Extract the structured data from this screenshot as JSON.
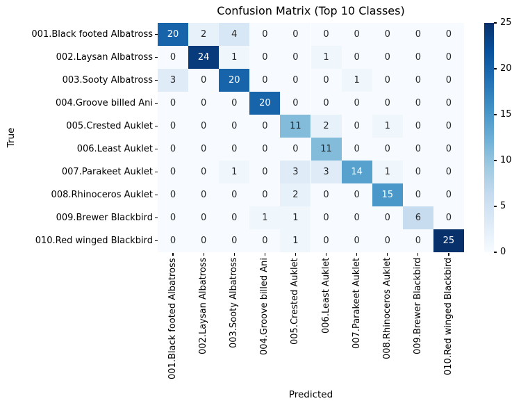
{
  "title": "Confusion Matrix (Top 10 Classes)",
  "chart_data": {
    "type": "heatmap",
    "title": "Confusion Matrix (Top 10 Classes)",
    "xlabel": "Predicted",
    "ylabel": "True",
    "categories": [
      "001.Black footed Albatross",
      "002.Laysan Albatross",
      "003.Sooty Albatross",
      "004.Groove billed Ani",
      "005.Crested Auklet",
      "006.Least Auklet",
      "007.Parakeet Auklet",
      "008.Rhinoceros Auklet",
      "009.Brewer Blackbird",
      "010.Red winged Blackbird"
    ],
    "matrix": [
      [
        20,
        2,
        4,
        0,
        0,
        0,
        0,
        0,
        0,
        0
      ],
      [
        0,
        24,
        1,
        0,
        0,
        1,
        0,
        0,
        0,
        0
      ],
      [
        3,
        0,
        20,
        0,
        0,
        0,
        1,
        0,
        0,
        0
      ],
      [
        0,
        0,
        0,
        20,
        0,
        0,
        0,
        0,
        0,
        0
      ],
      [
        0,
        0,
        0,
        0,
        11,
        2,
        0,
        1,
        0,
        0
      ],
      [
        0,
        0,
        0,
        0,
        0,
        11,
        0,
        0,
        0,
        0
      ],
      [
        0,
        0,
        1,
        0,
        3,
        3,
        14,
        1,
        0,
        0
      ],
      [
        0,
        0,
        0,
        0,
        2,
        0,
        0,
        15,
        0,
        0
      ],
      [
        0,
        0,
        0,
        1,
        1,
        0,
        0,
        0,
        6,
        0
      ],
      [
        0,
        0,
        0,
        0,
        1,
        0,
        0,
        0,
        0,
        25
      ]
    ],
    "vmin": 0,
    "vmax": 25,
    "colorbar_ticks": [
      0,
      5,
      10,
      15,
      20,
      25
    ],
    "colormap": "Blues",
    "colormap_stops": [
      "#f7fbff",
      "#deebf7",
      "#c6dbef",
      "#9ecae1",
      "#6baed6",
      "#4292c6",
      "#2171b5",
      "#08519c",
      "#08306b"
    ],
    "annotation_dark_color": "#262626",
    "annotation_light_color": "#ffffff",
    "background": "#ffffff",
    "legend_position": "colorbar-right",
    "grid": false
  }
}
